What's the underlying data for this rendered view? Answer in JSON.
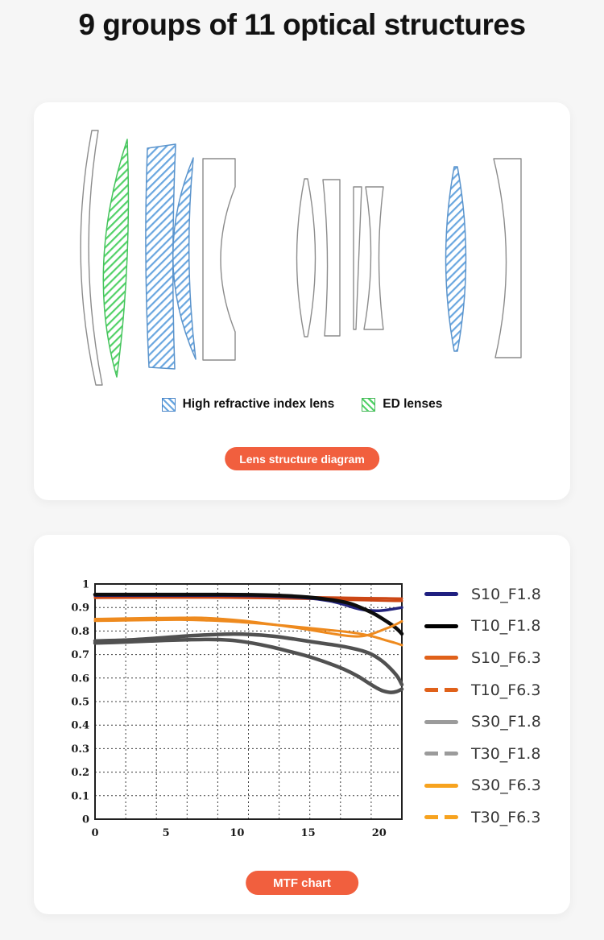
{
  "page": {
    "background": "#f6f6f6",
    "title": "9 groups of 11 optical structures"
  },
  "theme": {
    "accent_orange": "#F15F3E",
    "card_bg": "#ffffff",
    "lens_outline_gray": "#8c8c8c",
    "hatch_blue": "#6aa7e0",
    "hatch_green": "#52d268"
  },
  "lens_card": {
    "legend": [
      {
        "label": "High refractive index lens",
        "swatch": "blue-hatch",
        "stripe_color": "#6aa7e0",
        "border_color": "#4a86c8"
      },
      {
        "label": "ED lenses",
        "swatch": "green-hatch",
        "stripe_color": "#52d268",
        "border_color": "#43b856"
      }
    ],
    "button_label": "Lens structure diagram"
  },
  "mtf_card": {
    "button_label": "MTF chart"
  },
  "chart_data": {
    "type": "line",
    "title": "MTF chart",
    "xlabel": "",
    "ylabel": "",
    "xlim": [
      0,
      21.6
    ],
    "ylim": [
      0,
      1
    ],
    "x_ticks": [
      0,
      5,
      10,
      15,
      20
    ],
    "y_ticks": [
      0,
      0.1,
      0.2,
      0.3,
      0.4,
      0.5,
      0.6,
      0.7,
      0.8,
      0.9,
      1
    ],
    "grid": {
      "style": "dashed",
      "x_divisions": 10,
      "y_divisions": 10,
      "color": "#3d3d3d"
    },
    "legend_position": "right",
    "draw_order": [
      "T10_F6.3",
      "S10_F6.3",
      "S10_F1.8",
      "T10_F1.8",
      "T30_F6.3",
      "S30_F6.3",
      "T30_F1.8",
      "S30_F1.8"
    ],
    "series": [
      {
        "name": "S10_F1.8",
        "color": "#23237c",
        "legend_color": "#1f2080",
        "dash": false,
        "width": 3.5,
        "points": [
          [
            0,
            0.951
          ],
          [
            3,
            0.951
          ],
          [
            6,
            0.951
          ],
          [
            9,
            0.951
          ],
          [
            11,
            0.95
          ],
          [
            13,
            0.947
          ],
          [
            15,
            0.94
          ],
          [
            16.5,
            0.928
          ],
          [
            17.5,
            0.913
          ],
          [
            18.3,
            0.898
          ],
          [
            19,
            0.889
          ],
          [
            19.8,
            0.886
          ],
          [
            20.6,
            0.89
          ],
          [
            21.6,
            0.9
          ]
        ]
      },
      {
        "name": "T10_F1.8",
        "color": "#0d0d0d",
        "legend_color": "#000000",
        "dash": false,
        "width": 4.5,
        "points": [
          [
            0,
            0.955
          ],
          [
            3,
            0.955
          ],
          [
            6,
            0.955
          ],
          [
            9,
            0.955
          ],
          [
            11,
            0.954
          ],
          [
            12.5,
            0.952
          ],
          [
            14,
            0.948
          ],
          [
            15.5,
            0.941
          ],
          [
            17,
            0.929
          ],
          [
            18,
            0.916
          ],
          [
            19,
            0.892
          ],
          [
            19.8,
            0.868
          ],
          [
            20.6,
            0.838
          ],
          [
            21.2,
            0.812
          ],
          [
            21.6,
            0.788
          ]
        ]
      },
      {
        "name": "S10_F6.3",
        "color": "#cc4715",
        "legend_color": "#e0611a",
        "dash": false,
        "width": 3,
        "points": [
          [
            0,
            0.946
          ],
          [
            4,
            0.947
          ],
          [
            8,
            0.947
          ],
          [
            12,
            0.946
          ],
          [
            15,
            0.944
          ],
          [
            17,
            0.942
          ],
          [
            19,
            0.94
          ],
          [
            20.5,
            0.939
          ],
          [
            21.6,
            0.938
          ]
        ]
      },
      {
        "name": "T10_F6.3",
        "color": "#cc4715",
        "legend_color": "#e0611a",
        "dash": true,
        "width": 3,
        "points": [
          [
            0,
            0.941
          ],
          [
            4,
            0.942
          ],
          [
            8,
            0.942
          ],
          [
            12,
            0.94
          ],
          [
            15,
            0.937
          ],
          [
            17,
            0.934
          ],
          [
            19,
            0.931
          ],
          [
            20.5,
            0.929
          ],
          [
            21.6,
            0.928
          ]
        ]
      },
      {
        "name": "S30_F1.8",
        "color": "#515151",
        "legend_color": "#9b9b9b",
        "dash": false,
        "width": 4.5,
        "points": [
          [
            0,
            0.758
          ],
          [
            2,
            0.761
          ],
          [
            4,
            0.768
          ],
          [
            6,
            0.777
          ],
          [
            8,
            0.784
          ],
          [
            9.5,
            0.787
          ],
          [
            11,
            0.785
          ],
          [
            12.5,
            0.778
          ],
          [
            14,
            0.766
          ],
          [
            15.5,
            0.752
          ],
          [
            17,
            0.739
          ],
          [
            18,
            0.728
          ],
          [
            18.8,
            0.716
          ],
          [
            19.5,
            0.7
          ],
          [
            20.2,
            0.673
          ],
          [
            20.8,
            0.64
          ],
          [
            21.3,
            0.605
          ],
          [
            21.6,
            0.572
          ]
        ]
      },
      {
        "name": "T30_F1.8",
        "color": "#515151",
        "legend_color": "#9b9b9b",
        "dash": true,
        "width": 4.5,
        "points": [
          [
            0,
            0.749
          ],
          [
            2,
            0.753
          ],
          [
            4,
            0.758
          ],
          [
            6,
            0.762
          ],
          [
            8,
            0.764
          ],
          [
            9.5,
            0.761
          ],
          [
            10.5,
            0.754
          ],
          [
            11.5,
            0.744
          ],
          [
            12.5,
            0.731
          ],
          [
            13.5,
            0.716
          ],
          [
            15,
            0.692
          ],
          [
            16.5,
            0.662
          ],
          [
            17.5,
            0.638
          ],
          [
            18.5,
            0.608
          ],
          [
            19.2,
            0.581
          ],
          [
            19.8,
            0.559
          ],
          [
            20.3,
            0.545
          ],
          [
            20.8,
            0.539
          ],
          [
            21.2,
            0.542
          ],
          [
            21.6,
            0.553
          ]
        ]
      },
      {
        "name": "S30_F6.3",
        "color": "#ee8a1e",
        "legend_color": "#f7a31f",
        "dash": false,
        "width": 3,
        "points": [
          [
            0,
            0.851
          ],
          [
            2,
            0.853
          ],
          [
            4,
            0.855
          ],
          [
            6,
            0.856
          ],
          [
            7.5,
            0.856
          ],
          [
            9,
            0.851
          ],
          [
            10.5,
            0.843
          ],
          [
            12,
            0.832
          ],
          [
            13.5,
            0.82
          ],
          [
            15,
            0.806
          ],
          [
            16,
            0.796
          ],
          [
            17,
            0.786
          ],
          [
            18,
            0.778
          ],
          [
            18.8,
            0.778
          ],
          [
            19.5,
            0.788
          ],
          [
            20.3,
            0.806
          ],
          [
            21,
            0.823
          ],
          [
            21.6,
            0.841
          ]
        ]
      },
      {
        "name": "T30_F6.3",
        "color": "#ee8a1e",
        "legend_color": "#f7a31f",
        "dash": true,
        "width": 3,
        "points": [
          [
            0,
            0.843
          ],
          [
            2,
            0.845
          ],
          [
            4,
            0.847
          ],
          [
            6,
            0.848
          ],
          [
            8,
            0.845
          ],
          [
            10,
            0.839
          ],
          [
            12,
            0.83
          ],
          [
            13.5,
            0.822
          ],
          [
            15,
            0.813
          ],
          [
            16.5,
            0.804
          ],
          [
            17.5,
            0.798
          ],
          [
            18.5,
            0.79
          ],
          [
            19.2,
            0.782
          ],
          [
            19.8,
            0.773
          ],
          [
            20.5,
            0.76
          ],
          [
            21.1,
            0.75
          ],
          [
            21.6,
            0.74
          ]
        ]
      }
    ]
  }
}
